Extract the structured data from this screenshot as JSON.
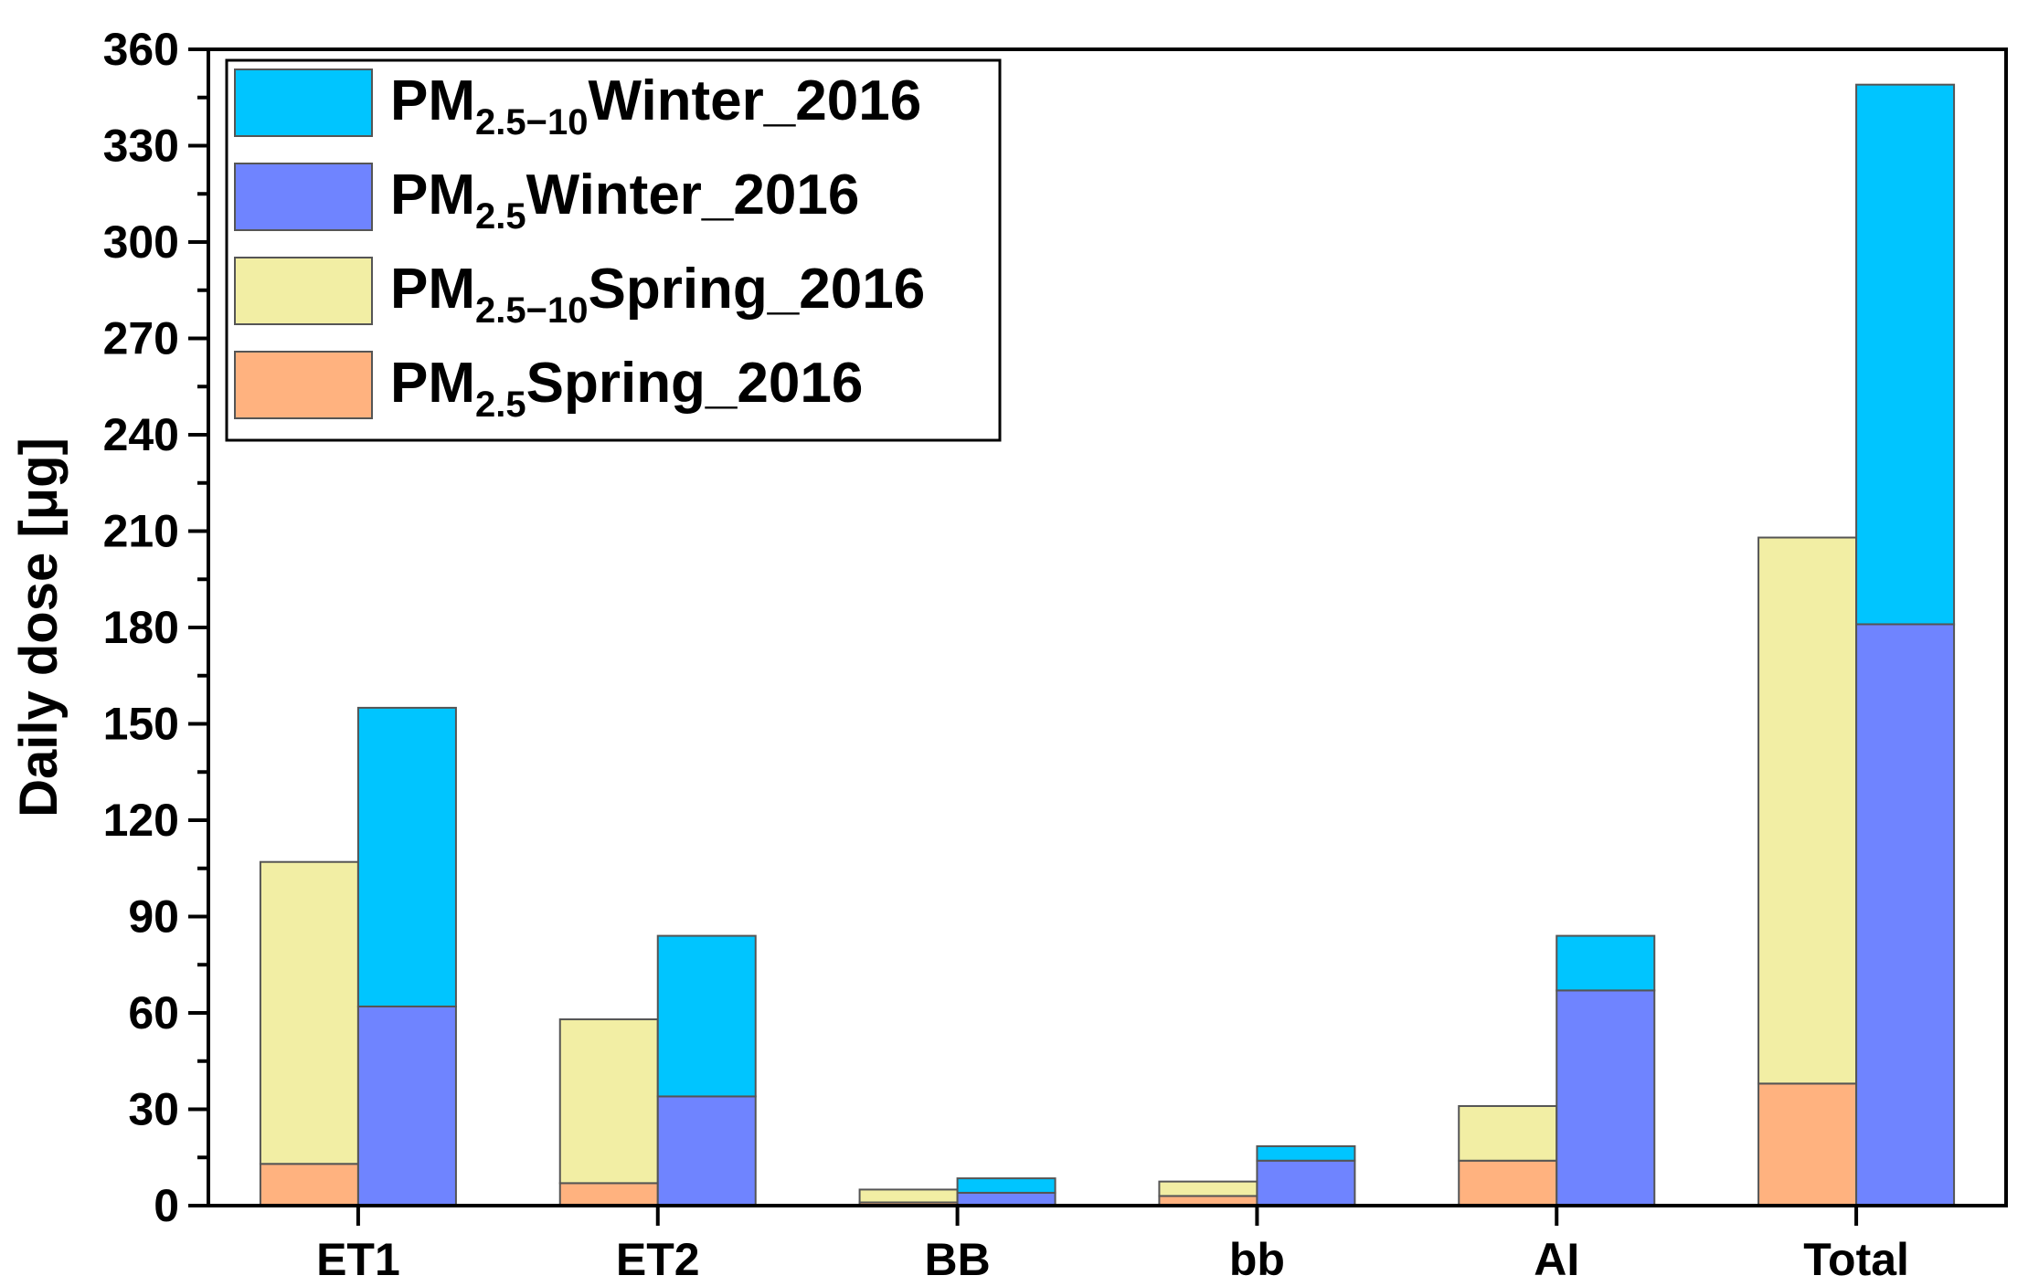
{
  "chart_data": {
    "type": "bar",
    "stacked": true,
    "categories": [
      "ET1",
      "ET2",
      "BB",
      "bb",
      "AI",
      "Total"
    ],
    "groups": [
      {
        "label": "Spring_2016",
        "stack": [
          {
            "name": "PM2.5Spring_2016",
            "values": [
              13,
              7,
              1,
              3,
              14,
              38
            ]
          },
          {
            "name": "PM2.5-10Spring_2016",
            "values": [
              94,
              51,
              4,
              4.5,
              17,
              170
            ]
          }
        ]
      },
      {
        "label": "Winter_2016",
        "stack": [
          {
            "name": "PM2.5Winter_2016",
            "values": [
              62,
              34,
              4,
              14,
              67,
              181
            ]
          },
          {
            "name": "PM2.5-10Winter_2016",
            "values": [
              93,
              50,
              4.5,
              4.5,
              17,
              168
            ]
          }
        ]
      }
    ],
    "ylabel": "Daily dose [μg]",
    "xlabel": "",
    "ylim": [
      0,
      360
    ],
    "yticks": [
      "0",
      "30",
      "60",
      "90",
      "120",
      "150",
      "180",
      "210",
      "240",
      "270",
      "300",
      "330",
      "360"
    ],
    "legend": {
      "position": "top-left",
      "entries": [
        {
          "base": "PM",
          "sub": "2.5−10",
          "suffix": "Winter_2016",
          "color": "#00C5FF"
        },
        {
          "base": "PM",
          "sub": "2.5",
          "suffix": "Winter_2016",
          "color": "#6F84FF"
        },
        {
          "base": "PM",
          "sub": "2.5−10",
          "suffix": "Spring_2016",
          "color": "#F2EEA4"
        },
        {
          "base": "PM",
          "sub": "2.5",
          "suffix": "Spring_2016",
          "color": "#FFB27F"
        }
      ]
    },
    "colors": {
      "PM2.5Spring_2016": "#FFB27F",
      "PM2.5-10Spring_2016": "#F2EEA4",
      "PM2.5Winter_2016": "#6F84FF",
      "PM2.5-10Winter_2016": "#00C5FF"
    },
    "grid": false
  }
}
